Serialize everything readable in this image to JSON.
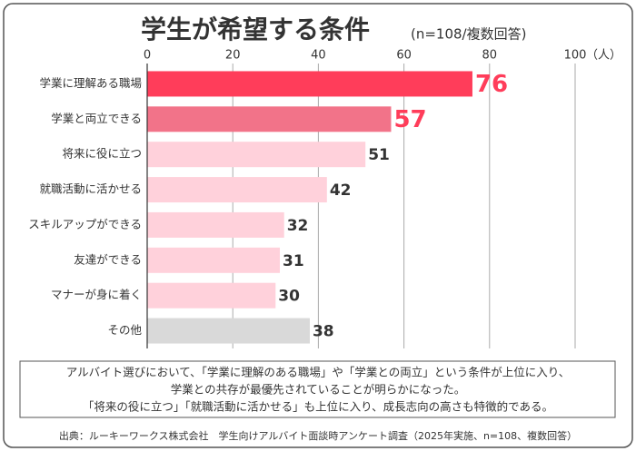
{
  "chart_data": {
    "type": "hbar",
    "title": "学生が希望する条件",
    "subtitle": "(n=108/複数回答)",
    "xlabel": "（人）",
    "categories": [
      "学業に理解ある職場",
      "学業と両立できる",
      "将来に役に立つ",
      "就職活動に活かせる",
      "スキルアップができる",
      "友達ができる",
      "マナーが身に着く",
      "その他"
    ],
    "values": [
      76,
      57,
      51,
      42,
      32,
      31,
      30,
      38
    ],
    "colors": [
      "#ff3d5a",
      "#f27389",
      "#ffd1db",
      "#ffd1db",
      "#ffd1db",
      "#ffd1db",
      "#ffd1db",
      "#d9d9d9"
    ],
    "value_label_colors": [
      "#ff3d5a",
      "#ff3d5a",
      "#333333",
      "#333333",
      "#333333",
      "#333333",
      "#333333",
      "#333333"
    ],
    "xlim": [
      0,
      100
    ],
    "xticks": [
      0,
      20,
      40,
      60,
      80,
      100
    ],
    "grid": true,
    "annotations": [
      "アルバイト選びにおいて、「学業に理解のある職場」や「学業との両立」という条件が上位に入り、",
      "学業との共存が最優先されていることが明らかになった。",
      "「将来の役に立つ」「就職活動に活かせる」も上位に入り、成長志向の高さも特徴的である。"
    ],
    "source": "出典：ルーキーワークス株式会社　学生向けアルバイト面談時アンケート調査（2025年実施、n=108、複数回答）"
  }
}
